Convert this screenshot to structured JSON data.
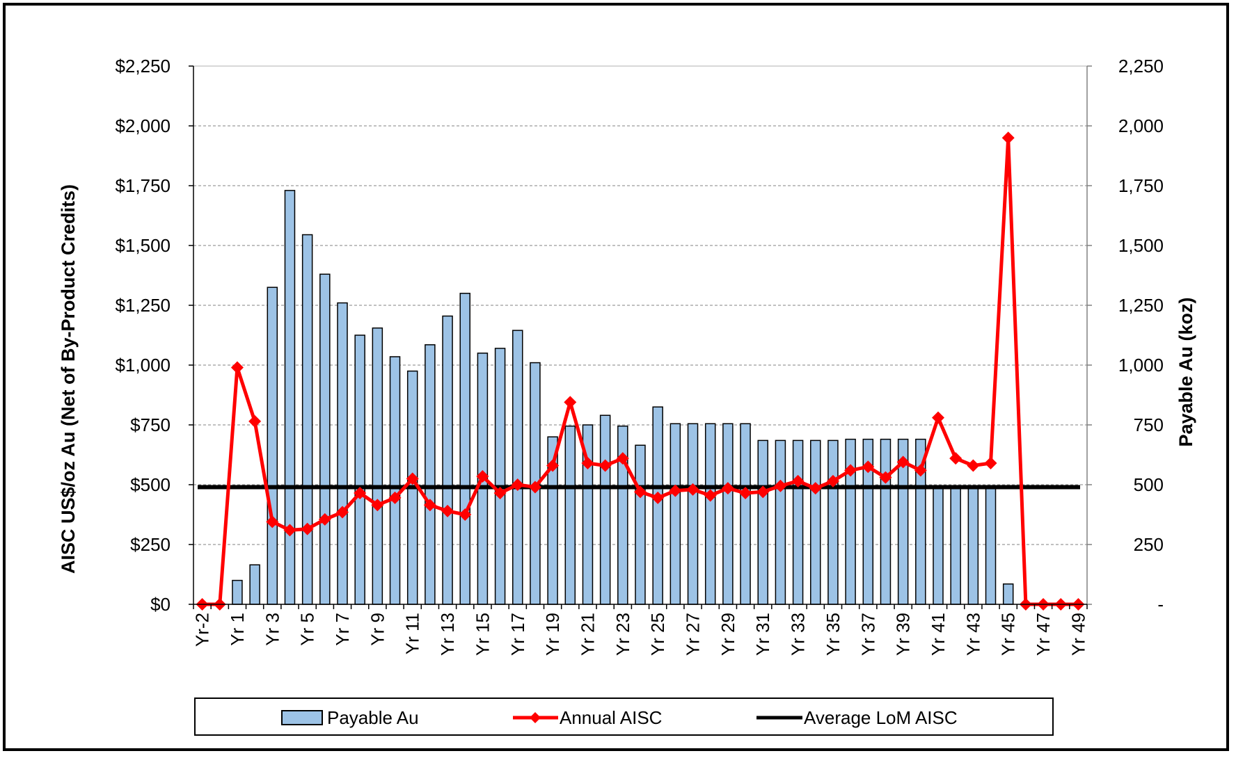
{
  "chart_data": {
    "type": "bar",
    "title": "",
    "ylabel_left": "AISC US$/oz Au (Net of By-Product Credits)",
    "ylabel_right": "Payable Au (koz)",
    "ylim_left": [
      0,
      2250
    ],
    "ylim_right": [
      0,
      2250
    ],
    "yticks_left": [
      "$0",
      "$250",
      "$500",
      "$750",
      "$1,000",
      "$1,250",
      "$1,500",
      "$1,750",
      "$2,000",
      "$2,250"
    ],
    "yticks_right": [
      "-",
      "250",
      "500",
      "750",
      "1,000",
      "1,250",
      "1,500",
      "1,750",
      "2,000",
      "2,250"
    ],
    "grid": true,
    "legend_position": "bottom",
    "categories": [
      "Yr-2",
      "Yr-1",
      "Yr 1",
      "Yr 2",
      "Yr 3",
      "Yr 4",
      "Yr 5",
      "Yr 6",
      "Yr 7",
      "Yr 8",
      "Yr 9",
      "Yr 10",
      "Yr 11",
      "Yr 12",
      "Yr 13",
      "Yr 14",
      "Yr 15",
      "Yr 16",
      "Yr 17",
      "Yr 18",
      "Yr 19",
      "Yr 20",
      "Yr 21",
      "Yr 22",
      "Yr 23",
      "Yr 24",
      "Yr 25",
      "Yr 26",
      "Yr 27",
      "Yr 28",
      "Yr 29",
      "Yr 30",
      "Yr 31",
      "Yr 32",
      "Yr 33",
      "Yr 34",
      "Yr 35",
      "Yr 36",
      "Yr 37",
      "Yr 38",
      "Yr 39",
      "Yr 40",
      "Yr 41",
      "Yr 42",
      "Yr 43",
      "Yr 44",
      "Yr 45",
      "Yr 46",
      "Yr 47",
      "Yr 48",
      "Yr 49"
    ],
    "visible_tick_labels": [
      "Yr-2",
      "Yr 1",
      "Yr 3",
      "Yr 5",
      "Yr 7",
      "Yr 9",
      "Yr 11",
      "Yr 13",
      "Yr 15",
      "Yr 17",
      "Yr 19",
      "Yr 21",
      "Yr 23",
      "Yr 25",
      "Yr 27",
      "Yr 29",
      "Yr 31",
      "Yr 33",
      "Yr 35",
      "Yr 37",
      "Yr 39",
      "Yr 41",
      "Yr 43",
      "Yr 45",
      "Yr 47",
      "Yr 49"
    ],
    "series": [
      {
        "name": "Payable Au",
        "type": "bar",
        "axis": "right",
        "color": "#9dc3e6",
        "values": [
          0,
          0,
          100,
          165,
          1325,
          1730,
          1545,
          1380,
          1260,
          1125,
          1155,
          1035,
          975,
          1085,
          1205,
          1300,
          1050,
          1070,
          1145,
          1010,
          700,
          745,
          750,
          790,
          745,
          665,
          825,
          755,
          755,
          755,
          755,
          755,
          685,
          685,
          685,
          685,
          685,
          690,
          690,
          690,
          690,
          690,
          490,
          490,
          490,
          490,
          85,
          0,
          0,
          0,
          0
        ]
      },
      {
        "name": "Annual AISC",
        "type": "line",
        "axis": "left",
        "color": "#ff0000",
        "values": [
          0,
          0,
          990,
          765,
          345,
          310,
          315,
          355,
          385,
          465,
          415,
          445,
          525,
          415,
          390,
          375,
          535,
          465,
          500,
          490,
          580,
          845,
          590,
          580,
          610,
          470,
          445,
          475,
          480,
          455,
          485,
          465,
          470,
          495,
          515,
          485,
          515,
          560,
          575,
          530,
          595,
          560,
          780,
          610,
          580,
          590,
          1950,
          0,
          0,
          0,
          0
        ]
      },
      {
        "name": "Average LoM AISC",
        "type": "line",
        "axis": "left",
        "color": "#000000",
        "value": 490
      }
    ]
  }
}
